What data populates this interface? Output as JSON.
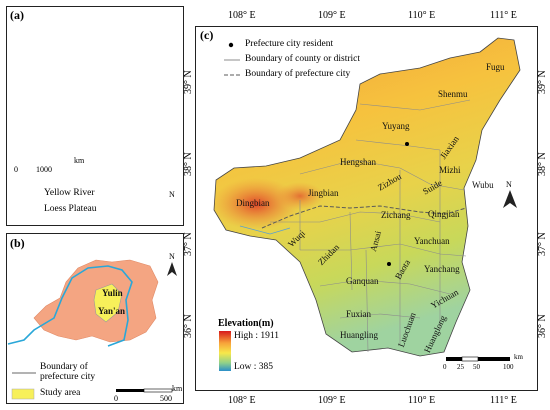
{
  "panel_a": {
    "label": "(a)",
    "scale_start": "0",
    "scale_end": "1000",
    "scale_unit": "km",
    "legend": [
      {
        "name": "Yellow River",
        "color": "#2aa7d8"
      },
      {
        "name": "Loess Plateau",
        "color": "#f4a582"
      }
    ],
    "north": "N"
  },
  "panel_b": {
    "label": "(b)",
    "places": [
      "Yulin",
      "Yan'an"
    ],
    "legend": [
      {
        "name": "Boundary of prefecture city",
        "color": "#9a9a9a"
      },
      {
        "name": "Study area",
        "color": "#f7f05a"
      }
    ],
    "scale_start": "0",
    "scale_end": "500",
    "scale_unit": "km",
    "north": "N"
  },
  "panel_c": {
    "label": "(c)",
    "longitudes": [
      "108° E",
      "109° E",
      "110° E",
      "111° E"
    ],
    "latitudes": [
      "39° N",
      "38° N",
      "37° N",
      "36° N"
    ],
    "legend": [
      {
        "name": "Prefecture city resident",
        "symbol": "dot"
      },
      {
        "name": "Boundary  of  county or district",
        "symbol": "line"
      },
      {
        "name": "Boundary  of  prefecture city",
        "symbol": "dash"
      }
    ],
    "elevation": {
      "title": "Elevation(m)",
      "high": "High : 1911",
      "low": "Low : 385"
    },
    "scale": {
      "ticks": [
        "0",
        "25",
        "50",
        "100"
      ],
      "unit": "km"
    },
    "north": "N",
    "counties": {
      "fugu": "Fugu",
      "shenmu": "Shenmu",
      "yuyang": "Yuyang",
      "jiaxian": "Jiaxian",
      "mizhi": "Mizhi",
      "hengshan": "Hengshan",
      "zizhou": "Zizhou",
      "suide": "Suide",
      "wubu": "Wubu",
      "dingbian": "Dingbian",
      "jingbian": "Jingbian",
      "qingjian": "Qingjian",
      "zichang": "Zichang",
      "wuqi": "Wuqi",
      "zhidan": "Zhidan",
      "ansai": "Ansai",
      "yanchuan": "Yanchuan",
      "baota": "Baota",
      "yanchang": "Yanchang",
      "ganquan": "Ganquan",
      "fuxian": "Fuxian",
      "yichuan": "Yichuan",
      "luochuan": "Luochuan",
      "huanglong": "Huanglong",
      "huangling": "Huangling"
    }
  }
}
